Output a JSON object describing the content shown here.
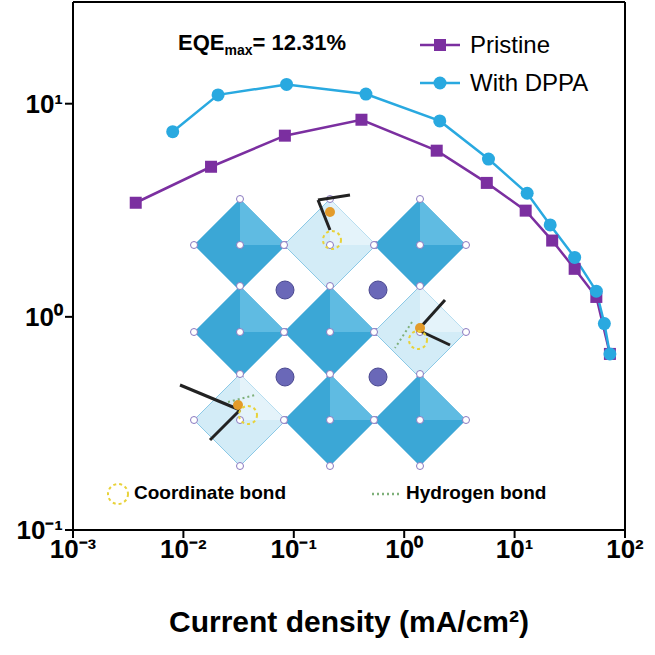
{
  "chart_data": {
    "type": "line",
    "log": true,
    "xlabel": "Current density (mA/cm²)",
    "annotation": {
      "main": "EQE",
      "subscript": "max",
      "suffix": "= 12.31%"
    },
    "xlim": [
      0.001,
      100
    ],
    "ylim": [
      0.1,
      30
    ],
    "xticks": [
      {
        "value": 0.001,
        "label": "10⁻³"
      },
      {
        "value": 0.01,
        "label": "10⁻²"
      },
      {
        "value": 0.1,
        "label": "10⁻¹"
      },
      {
        "value": 1,
        "label": "10⁰"
      },
      {
        "value": 10,
        "label": "10¹"
      },
      {
        "value": 100,
        "label": "10²"
      }
    ],
    "yticks": [
      {
        "value": 0.1,
        "label": "10⁻¹"
      },
      {
        "value": 1,
        "label": "10⁰"
      },
      {
        "value": 10,
        "label": "10¹"
      }
    ],
    "legend": "upper right",
    "series": [
      {
        "name": "Pristine",
        "color": "#7b2fa0",
        "marker": "square",
        "x": [
          0.0037,
          0.0178,
          0.083,
          0.41,
          1.97,
          5.6,
          12.6,
          21.9,
          35,
          55,
          73
        ],
        "values": [
          3.43,
          5.06,
          7.08,
          8.41,
          6.02,
          4.25,
          3.15,
          2.28,
          1.68,
          1.24,
          0.67
        ]
      },
      {
        "name": "With DPPA",
        "color": "#29a9e0",
        "marker": "circle",
        "x": [
          0.008,
          0.0206,
          0.086,
          0.45,
          2.1,
          5.8,
          13,
          21,
          35,
          55,
          65,
          73
        ],
        "values": [
          7.39,
          11.0,
          12.31,
          11.1,
          8.3,
          5.5,
          3.8,
          2.7,
          1.9,
          1.32,
          0.93,
          0.67
        ]
      }
    ],
    "inset_legend": [
      "Coordinate bond",
      "Hydrogen bond"
    ]
  }
}
